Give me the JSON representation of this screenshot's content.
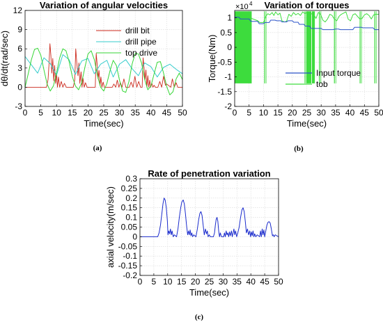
{
  "chart_data": [
    {
      "type": "line",
      "title": "Variation of angular velocities",
      "xlabel": "Time(sec)",
      "ylabel": "dθ/dt(rad/sec)",
      "xlim": [
        0,
        50
      ],
      "ylim": [
        -3,
        12
      ],
      "xticks": [
        "0",
        "5",
        "10",
        "15",
        "20",
        "25",
        "30",
        "35",
        "40",
        "45",
        "50"
      ],
      "yticks": [
        "-3",
        "0",
        "3",
        "6",
        "9",
        "12"
      ],
      "grid": true,
      "legend_position": "top-right",
      "series": [
        {
          "name": "drill bit",
          "color": "#cc2a1e",
          "x": [
            0,
            6.8,
            7.3,
            7.6,
            7.9,
            8.2,
            8.5,
            8.8,
            9.1,
            9.4,
            9.7,
            10,
            10.3,
            10.6,
            11,
            11.5,
            12,
            12.5,
            13.1,
            13.6,
            14.1,
            14.7,
            15.3,
            15.8,
            16.1,
            16.4,
            16.8,
            17.1,
            17.4,
            17.8,
            18.1,
            18.4,
            18.8,
            19.2,
            19.7,
            20.2,
            20.8,
            21.3,
            21.9,
            22.3,
            22.6,
            22.9,
            23.2,
            23.5,
            23.8,
            24.1,
            24.4,
            24.8,
            25.2,
            25.6,
            27.7,
            28.2,
            28.8,
            29.3,
            29.8,
            30.3,
            30.8,
            31.4,
            32,
            33.1,
            33.7,
            34.3,
            34.9,
            35.5,
            36.1,
            36.7,
            37.2,
            37.5,
            37.8,
            38.1,
            38.4,
            38.7,
            39,
            39.3,
            39.6,
            39.9,
            40.3,
            40.6,
            41,
            41.4,
            42.2,
            42.8,
            43.4,
            44,
            44.6,
            45,
            46.3,
            46.8,
            47.4,
            48,
            48.5,
            49.2,
            50
          ],
          "y": [
            0,
            0,
            1.2,
            3.5,
            6.8,
            5,
            2.2,
            4.5,
            1,
            3.4,
            0.6,
            2.1,
            0,
            1.6,
            0,
            0.9,
            0,
            0.6,
            0,
            0,
            0,
            0,
            0,
            1.2,
            6,
            4,
            1.8,
            3.8,
            0.6,
            2.4,
            0,
            1.4,
            0,
            0.7,
            0,
            0,
            0,
            0,
            0,
            0,
            5.3,
            3.6,
            1.3,
            2.6,
            0.3,
            1.6,
            0,
            0.8,
            0,
            0,
            0,
            0.5,
            0,
            1.1,
            0,
            0.7,
            0,
            1.3,
            0,
            0,
            0.8,
            0,
            1.7,
            0,
            0.9,
            0,
            0,
            4.6,
            3,
            1.2,
            2.7,
            0,
            1.8,
            0,
            1.1,
            0,
            0.6,
            0,
            0.3,
            0,
            0,
            0.9,
            0,
            1.7,
            0.3,
            0.5,
            0,
            1.3,
            0,
            0.7,
            0,
            0,
            0
          ]
        },
        {
          "name": "drill pipe",
          "color": "#34cccc",
          "x": [
            0,
            2,
            4,
            6,
            8,
            10,
            12,
            14,
            16,
            18,
            20,
            22,
            24,
            26,
            28,
            30,
            32,
            34,
            36,
            38,
            40,
            42,
            44,
            46,
            48,
            50
          ],
          "y": [
            4.8,
            3.5,
            2.2,
            4.6,
            3.7,
            1.9,
            5.1,
            4.3,
            2,
            4.1,
            4.5,
            2.1,
            3.6,
            4.2,
            1.6,
            3.6,
            4.3,
            2.9,
            1.8,
            3.8,
            3.2,
            1.6,
            3.1,
            3.6,
            2.8,
            2.1
          ]
        },
        {
          "name": "top drive",
          "color": "#34d634",
          "x": [
            0,
            1,
            2,
            3,
            4,
            5,
            6,
            7,
            8,
            9,
            10,
            11,
            12,
            13,
            14,
            15,
            16,
            17,
            18,
            19,
            20,
            21,
            22,
            23,
            24,
            25,
            26,
            27,
            28,
            29,
            30,
            31,
            32,
            33,
            34,
            35,
            36,
            37,
            38,
            39,
            40,
            41,
            42,
            43,
            44,
            45,
            46,
            47,
            48,
            49,
            50
          ],
          "y": [
            0,
            2.1,
            4.3,
            5.9,
            6.1,
            5,
            2.7,
            0.5,
            -0.6,
            0.2,
            2.2,
            4.6,
            6,
            5.7,
            4,
            1.7,
            0.2,
            -0.4,
            0.7,
            3.1,
            5.2,
            5.7,
            4.3,
            1.8,
            0,
            -0.6,
            0.6,
            2.6,
            4.2,
            3.4,
            1.1,
            -0.6,
            -0.8,
            0.9,
            3.6,
            5.3,
            5.2,
            3.8,
            1.2,
            -0.4,
            0.2,
            2.1,
            3.9,
            4,
            2.2,
            0.1,
            -1.2,
            -0.7,
            1.3,
            2.2,
            1.2
          ]
        }
      ]
    },
    {
      "type": "line",
      "title": "Variation of torques",
      "xlabel": "Time(sec)",
      "ylabel": "Torque(Nm)",
      "multiplier_label": "×10",
      "multiplier_exponent": "4",
      "xlim": [
        0,
        50
      ],
      "ylim": [
        -2,
        1.25
      ],
      "xticks": [
        "0",
        "5",
        "10",
        "15",
        "20",
        "25",
        "30",
        "35",
        "40",
        "45",
        "50"
      ],
      "yticks": [
        "-2",
        "-1.5",
        "-1",
        "-0.5",
        "0",
        "0.5",
        "1"
      ],
      "grid": true,
      "legend_position": "lower-right",
      "series": [
        {
          "name": "Input torque",
          "color": "#2a52c8",
          "x": [
            0,
            1.5,
            2,
            5,
            5.6,
            8,
            8.5,
            10,
            10.4,
            12,
            12.5,
            14,
            14.6,
            16,
            16.4,
            18,
            18.5,
            20,
            20.5,
            22,
            22.4,
            24,
            24.5,
            26,
            26.5,
            30,
            30.6,
            34,
            35,
            36,
            36.7,
            41,
            41.6,
            44,
            44.5,
            48,
            48.6,
            50
          ],
          "y": [
            1.02,
            1.02,
            0.96,
            0.96,
            0.88,
            0.88,
            0.8,
            0.8,
            0.84,
            0.84,
            0.92,
            0.92,
            0.9,
            0.9,
            0.86,
            0.86,
            0.9,
            0.9,
            0.85,
            0.85,
            0.78,
            0.78,
            0.72,
            0.72,
            0.64,
            0.64,
            0.6,
            0.6,
            0.62,
            0.62,
            0.6,
            0.6,
            0.68,
            0.68,
            0.66,
            0.66,
            0.6,
            0.6
          ]
        },
        {
          "name": "tob",
          "color": "#3ddc3d",
          "x": [
            0,
            8,
            8.7,
            10,
            10.8,
            11.5,
            12.2,
            13,
            13.6,
            14.2,
            15,
            15.7,
            16.4,
            17.2,
            18,
            18.8,
            19.6,
            20.4,
            21.2,
            22,
            22.8,
            23.6,
            24.4,
            25.2,
            27.5,
            28.2,
            29,
            29.8,
            30.6,
            31.4,
            32.2,
            33,
            33.8,
            34.6,
            35.4,
            36.2,
            37,
            37.8,
            38.6,
            39.4,
            40.2,
            41,
            41.8,
            42.6,
            43.4,
            44.2,
            45,
            45.8,
            46.6,
            47.4,
            48.2,
            49,
            50
          ],
          "y": [
            1.2,
            0.9,
            0.84,
            0.84,
            1.05,
            1.14,
            1.1,
            1.18,
            1.08,
            1.2,
            1.1,
            1.16,
            0.9,
            0.86,
            0.88,
            1.12,
            1.05,
            1.18,
            1.1,
            1.15,
            1.08,
            1.2,
            1.14,
            1.2,
            1.1,
            0.98,
            1.18,
            1.12,
            0.92,
            0.86,
            0.96,
            1.12,
            1.08,
            0.95,
            0.9,
            1.05,
            1.12,
            1.16,
            1.2,
            0.95,
            0.9,
            1.1,
            1.14,
            1.05,
            0.96,
            0.98,
            1.1,
            1.14,
            1.08,
            0.96,
            1.1,
            1.12,
            1.12
          ]
        }
      ],
      "switching_bands": [
        [
          0,
          5.9
        ],
        [
          25,
          26.6
        ],
        [
          26.8,
          27.8
        ]
      ],
      "switching_spikes": [
        10.4,
        24.4,
        29.4,
        34.6,
        43.5,
        48.6
      ],
      "switching_range": [
        -1.22,
        1.22
      ]
    },
    {
      "type": "line",
      "title": "Rate of penetration variation",
      "xlabel": "Time(sec)",
      "ylabel": "axial velocity(m/sec)",
      "xlim": [
        0,
        50
      ],
      "ylim": [
        -0.2,
        0.3
      ],
      "xticks": [
        "0",
        "5",
        "10",
        "15",
        "20",
        "25",
        "30",
        "35",
        "40",
        "45",
        "50"
      ],
      "yticks": [
        "-0.2",
        "-0.15",
        "-0.1",
        "-0.05",
        "0",
        "0.05",
        "0.1",
        "0.15",
        "0.2",
        "0.25",
        "0.3"
      ],
      "grid": true,
      "series": [
        {
          "name": "",
          "color": "#1a2bcc",
          "x": [
            0,
            6.4,
            6.9,
            7.4,
            7.9,
            8.3,
            8.7,
            9.1,
            9.5,
            9.9,
            10.1,
            10.4,
            10.7,
            11,
            11.3,
            11.6,
            12,
            12.4,
            13.2,
            13.7,
            14.2,
            14.7,
            15.1,
            15.6,
            16,
            16.4,
            16.8,
            17.2,
            17.5,
            17.8,
            18.1,
            18.4,
            18.7,
            19,
            19.4,
            20.2,
            20.7,
            21.2,
            21.6,
            22,
            22.4,
            22.8,
            23.2,
            23.6,
            24,
            24.3,
            24.6,
            25,
            25.4,
            26.5,
            26.9,
            27.2,
            27.5,
            27.8,
            28.1,
            28.4,
            28.7,
            29,
            29.4,
            30.2,
            30.5,
            30.8,
            31.1,
            31.4,
            31.7,
            32,
            32.3,
            32.6,
            33,
            33.3,
            33.6,
            33.9,
            34.2,
            34.5,
            34.9,
            35.3,
            35.8,
            36.3,
            36.8,
            37.2,
            37.6,
            38,
            38.4,
            38.8,
            39.2,
            39.6,
            39.9,
            40.2,
            40.5,
            40.8,
            41.1,
            41.4,
            41.8,
            42.3,
            43.2,
            43.5,
            43.8,
            44.1,
            44.4,
            44.7,
            45,
            45.4,
            45.8,
            46.2,
            46.6,
            47,
            47.4,
            47.8,
            48.1,
            48.4,
            48.8,
            50
          ],
          "y": [
            0,
            0,
            0.02,
            0.06,
            0.12,
            0.17,
            0.2,
            0.19,
            0.15,
            0.08,
            0.01,
            0.03,
            0.015,
            0.04,
            0.01,
            0.03,
            0,
            0.01,
            0,
            0.04,
            0.1,
            0.15,
            0.18,
            0.19,
            0.17,
            0.12,
            0.06,
            0.01,
            0.03,
            0.01,
            0.035,
            0.005,
            0.02,
            0,
            0.01,
            0,
            0.04,
            0.09,
            0.12,
            0.13,
            0.11,
            0.06,
            0.01,
            0.04,
            0.015,
            0.03,
            0,
            0.01,
            0,
            0,
            0.02,
            0.06,
            0.09,
            0.1,
            0.08,
            0.03,
            0,
            0.02,
            0,
            0,
            0.02,
            0,
            0.03,
            0.01,
            0.02,
            0,
            0.025,
            0.005,
            0.03,
            0,
            0.02,
            0.04,
            0.01,
            0.03,
            0,
            0.02,
            0.05,
            0.1,
            0.14,
            0.15,
            0.13,
            0.08,
            0.02,
            0.04,
            0.01,
            0.03,
            0,
            0.025,
            0.005,
            0.03,
            0,
            0.015,
            0,
            0.01,
            0,
            0.03,
            0,
            0.04,
            0.01,
            0.035,
            0,
            0.03,
            0.06,
            0.075,
            0.078,
            0.07,
            0.04,
            0.005,
            0.01,
            0,
            0.01,
            0
          ]
        }
      ]
    }
  ],
  "panel_labels": [
    "(a)",
    "(b)",
    "(c)"
  ]
}
